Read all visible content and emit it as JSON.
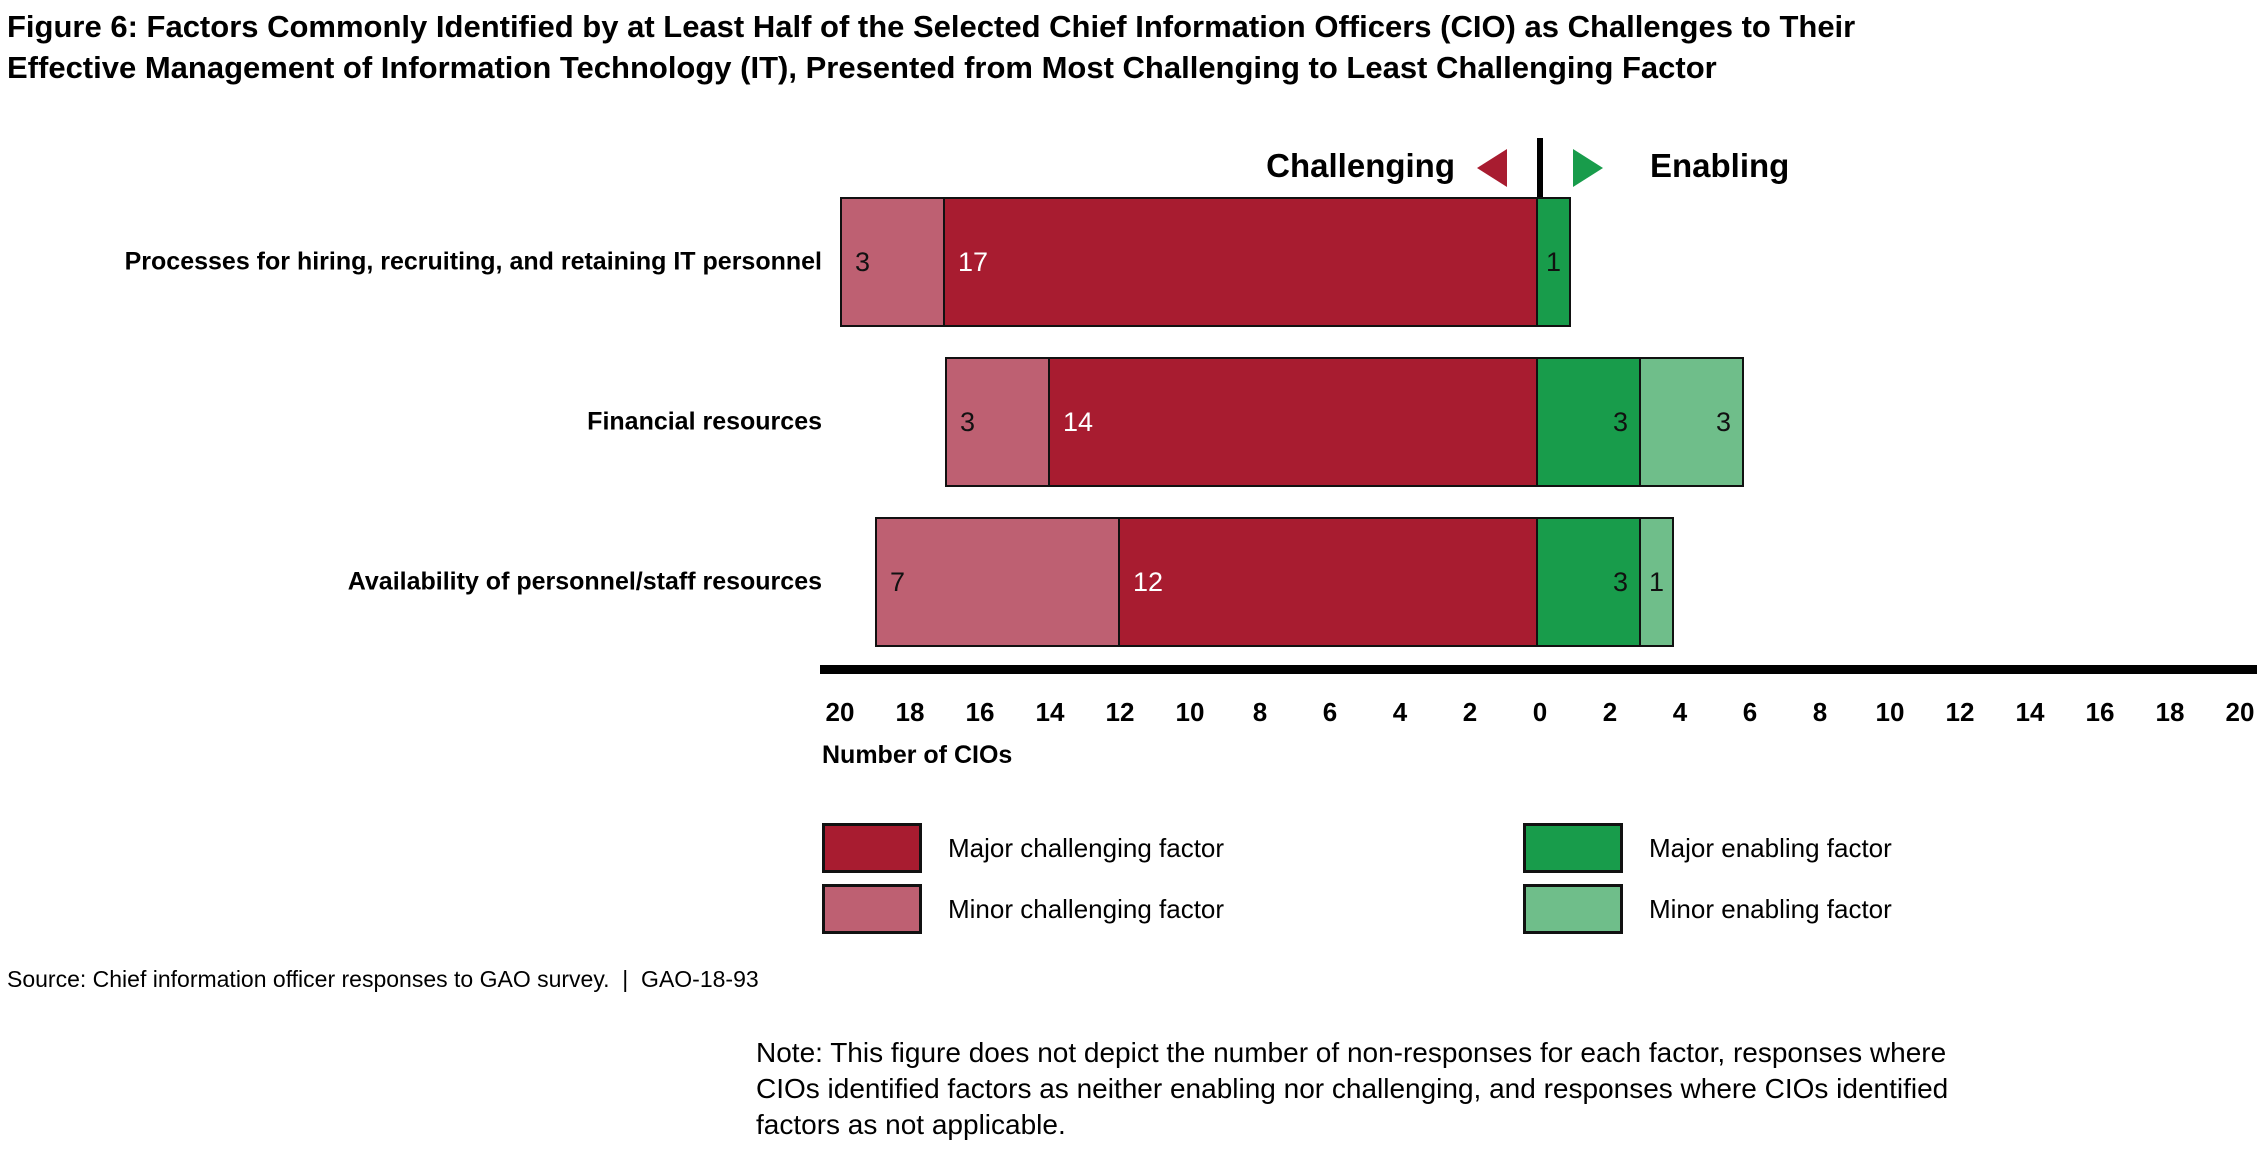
{
  "title_lines": [
    "Figure 6: Factors Commonly Identified by at Least Half of the Selected Chief Information Officers (CIO) as Challenges to Their",
    "Effective Management of Information Technology (IT), Presented from Most Challenging to Least Challenging Factor"
  ],
  "direction_header": {
    "challenging_label": "Challenging",
    "enabling_label": "Enabling"
  },
  "colors": {
    "major_challenging": "#A81C30",
    "minor_challenging": "#BE6072",
    "major_enabling": "#189C4B",
    "minor_enabling": "#6FBE8A",
    "axis": "#000000",
    "bar_border": "#111111",
    "label_on_dark": "#FFFFFF",
    "label_on_light": "#111111"
  },
  "chart_data": {
    "type": "bar",
    "variant": "horizontal-diverging-stacked",
    "title": "Figure 6: Factors Commonly Identified by at Least Half of the Selected Chief Information Officers (CIO) as Challenges to Their Effective Management of Information Technology (IT), Presented from Most Challenging to Least Challenging Factor",
    "xlabel": "Number of CIOs",
    "axis": {
      "tick_values": [
        20,
        18,
        16,
        14,
        12,
        10,
        8,
        6,
        4,
        2,
        0,
        2,
        4,
        6,
        8,
        10,
        12,
        14,
        16,
        18,
        20
      ],
      "left_max": 20,
      "right_max": 20,
      "tick_step": 2,
      "left_side_label": "Challenging",
      "right_side_label": "Enabling"
    },
    "categories": [
      "Processes for hiring, recruiting, and retaining IT personnel",
      "Financial resources",
      "Availability of personnel/staff resources"
    ],
    "series": [
      {
        "name": "Minor challenging factor",
        "key": "minor_challenging",
        "side": "challenging",
        "color": "#BE6072",
        "values": [
          3,
          3,
          7
        ]
      },
      {
        "name": "Major challenging factor",
        "key": "major_challenging",
        "side": "challenging",
        "color": "#A81C30",
        "values": [
          17,
          14,
          12
        ]
      },
      {
        "name": "Major enabling factor",
        "key": "major_enabling",
        "side": "enabling",
        "color": "#189C4B",
        "values": [
          1,
          3,
          3
        ]
      },
      {
        "name": "Minor enabling factor",
        "key": "minor_enabling",
        "side": "enabling",
        "color": "#6FBE8A",
        "values": [
          0,
          3,
          1
        ]
      }
    ],
    "rows": [
      {
        "label": "Processes for hiring, recruiting, and retaining IT personnel",
        "segments": [
          {
            "type": "minor_challenging",
            "side": "challenging",
            "value": 3
          },
          {
            "type": "major_challenging",
            "side": "challenging",
            "value": 17
          },
          {
            "type": "major_enabling",
            "side": "enabling",
            "value": 1
          }
        ]
      },
      {
        "label": "Financial resources",
        "segments": [
          {
            "type": "minor_challenging",
            "side": "challenging",
            "value": 3
          },
          {
            "type": "major_challenging",
            "side": "challenging",
            "value": 14
          },
          {
            "type": "major_enabling",
            "side": "enabling",
            "value": 3
          },
          {
            "type": "minor_enabling",
            "side": "enabling",
            "value": 3
          }
        ]
      },
      {
        "label": "Availability of personnel/staff resources",
        "segments": [
          {
            "type": "minor_challenging",
            "side": "challenging",
            "value": 7
          },
          {
            "type": "major_challenging",
            "side": "challenging",
            "value": 12
          },
          {
            "type": "major_enabling",
            "side": "enabling",
            "value": 3
          },
          {
            "type": "minor_enabling",
            "side": "enabling",
            "value": 1
          }
        ]
      }
    ]
  },
  "legend": {
    "items": [
      {
        "label": "Major challenging factor",
        "key": "major_challenging",
        "color": "#A81C30"
      },
      {
        "label": "Minor challenging factor",
        "key": "minor_challenging",
        "color": "#BE6072"
      },
      {
        "label": "Major enabling factor",
        "key": "major_enabling",
        "color": "#189C4B"
      },
      {
        "label": "Minor enabling factor",
        "key": "minor_enabling",
        "color": "#6FBE8A"
      }
    ]
  },
  "source_line": "Source: Chief information officer responses to GAO survey.  |  GAO-18-93",
  "note_lines": [
    "Note: This figure does not depict the number of non-responses for each factor, responses where",
    "CIOs identified factors as neither enabling nor challenging, and responses where CIOs identified",
    "factors as not applicable."
  ],
  "note": "Note: This figure does not depict the number of non-responses for each factor, responses where CIOs identified factors as neither enabling nor challenging, and responses where CIOs identified factors as not applicable."
}
